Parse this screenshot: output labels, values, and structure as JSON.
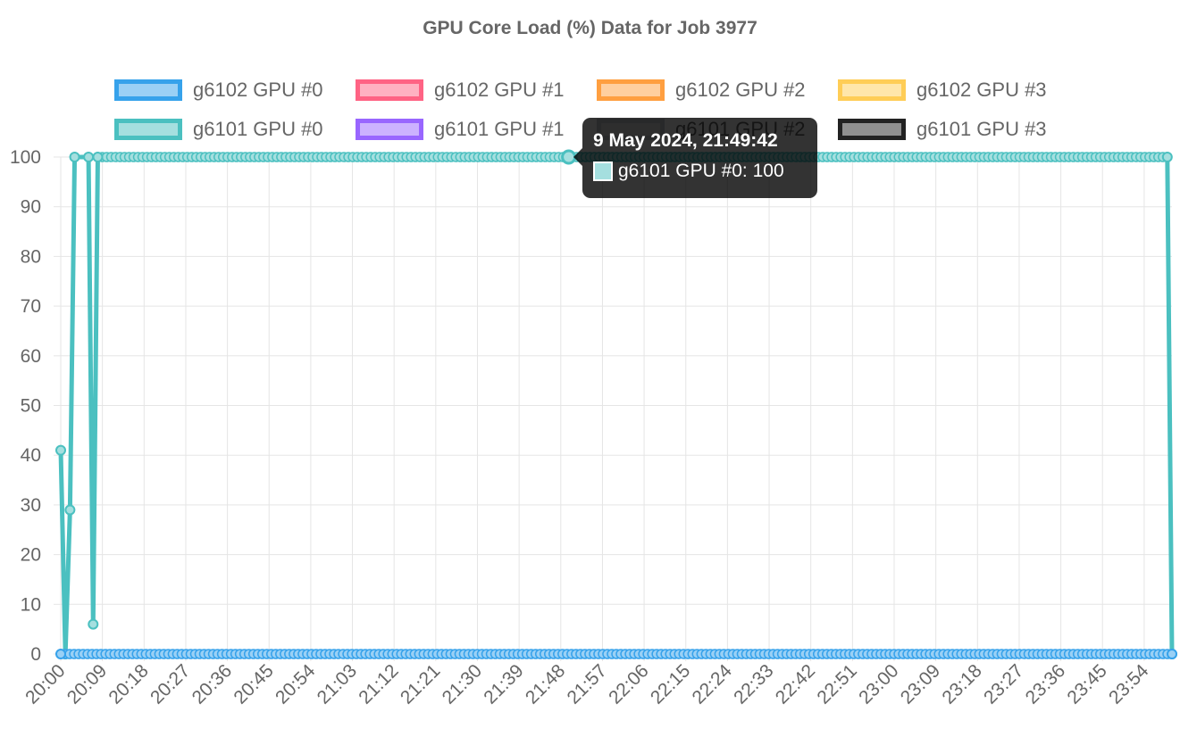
{
  "chart_data": {
    "type": "line",
    "title": "GPU Core Load (%) Data for Job 3977",
    "xlabel": "",
    "ylabel": "",
    "ylim": [
      0,
      100
    ],
    "yticks": [
      0,
      10,
      20,
      30,
      40,
      50,
      60,
      70,
      80,
      90,
      100
    ],
    "xlim": [
      "20:00",
      "24:00"
    ],
    "xticks": [
      "20:00",
      "20:09",
      "20:18",
      "20:27",
      "20:36",
      "20:45",
      "20:54",
      "21:03",
      "21:12",
      "21:21",
      "21:30",
      "21:39",
      "21:48",
      "21:57",
      "22:06",
      "22:15",
      "22:24",
      "22:33",
      "22:42",
      "22:51",
      "23:00",
      "23:09",
      "23:18",
      "23:27",
      "23:36",
      "23:45",
      "23:54"
    ],
    "grid": true,
    "legend_position": "top",
    "series": [
      {
        "name": "g6102 GPU #0",
        "color": "#36a2eb",
        "fill": "#9ad0f5",
        "points": [
          [
            "20:00",
            0
          ],
          [
            "24:00",
            0
          ]
        ]
      },
      {
        "name": "g6102 GPU #1",
        "color": "#ff6384",
        "fill": "#ffb1c1",
        "points": []
      },
      {
        "name": "g6102 GPU #2",
        "color": "#ff9f40",
        "fill": "#ffcf9f",
        "points": []
      },
      {
        "name": "g6102 GPU #3",
        "color": "#ffcd56",
        "fill": "#ffe6aa",
        "points": []
      },
      {
        "name": "g6101 GPU #0",
        "color": "#4bc0c0",
        "fill": "#a5dfdf",
        "points": [
          [
            "20:00",
            41
          ],
          [
            "20:01",
            0
          ],
          [
            "20:02",
            29
          ],
          [
            "20:03",
            100
          ],
          [
            "20:06",
            100
          ],
          [
            "20:07",
            6
          ],
          [
            "20:08",
            100
          ],
          [
            "23:59",
            100
          ],
          [
            "24:00",
            0
          ]
        ]
      },
      {
        "name": "g6101 GPU #1",
        "color": "#9966ff",
        "fill": "#ccb2ff",
        "points": []
      },
      {
        "name": "g6101 GPU #2",
        "color": "#c9cbcf",
        "fill": "#e4e5e7",
        "points": []
      },
      {
        "name": "g6101 GPU #3",
        "color": "#222222",
        "fill": "#909090",
        "points": []
      }
    ]
  },
  "tooltip": {
    "title": "9 May 2024, 21:49:42",
    "label": "g6101 GPU #0: 100",
    "x": "21:49:42",
    "y": 100
  }
}
